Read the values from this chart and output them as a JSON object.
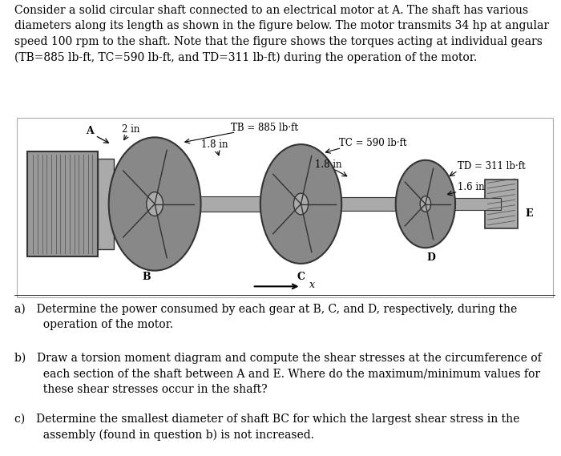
{
  "para": "Consider a solid circular shaft connected to an electrical motor at A. The shaft has various\ndiameters along its length as shown in the figure below. The motor transmits 34 hp at angular\nspeed 100 rpm to the shaft. Note that the figure shows the torques acting at individual gears\n(TB=885 lb-ft, TC=590 lb-ft, and TD=311 lb-ft) during the operation of the motor.",
  "label_A": "A",
  "label_B": "B",
  "label_C": "C",
  "label_D": "D",
  "label_E": "E",
  "label_x": "x",
  "label_2in": "2 in",
  "label_18in_1": "1.8 in",
  "label_18in_2": "1.8 in",
  "label_16in": "1.6 in",
  "label_TB": "TB = 885 lb·ft",
  "label_TC": "TC = 590 lb·ft",
  "label_TD": "TD = 311 lb·ft",
  "qa": "a) Determine the power consumed by each gear at B, C, and D, respectively, during the\n  operation of the motor.",
  "qb": "b) Draw a torsion moment diagram and compute the shear stresses at the circumference of\n  each section of the shaft between A and E. Where do the maximum/minimum values for\n  these shear stresses occur in the shaft?",
  "qc": "c) Determine the smallest diameter of shaft BC for which the largest shear stress in the\n  assembly (found in question b) is not increased.",
  "bg": "#ffffff",
  "dark": "#222222",
  "gray1": "#999999",
  "gray2": "#bbbbbb",
  "gray3": "#cccccc",
  "gray4": "#444444"
}
